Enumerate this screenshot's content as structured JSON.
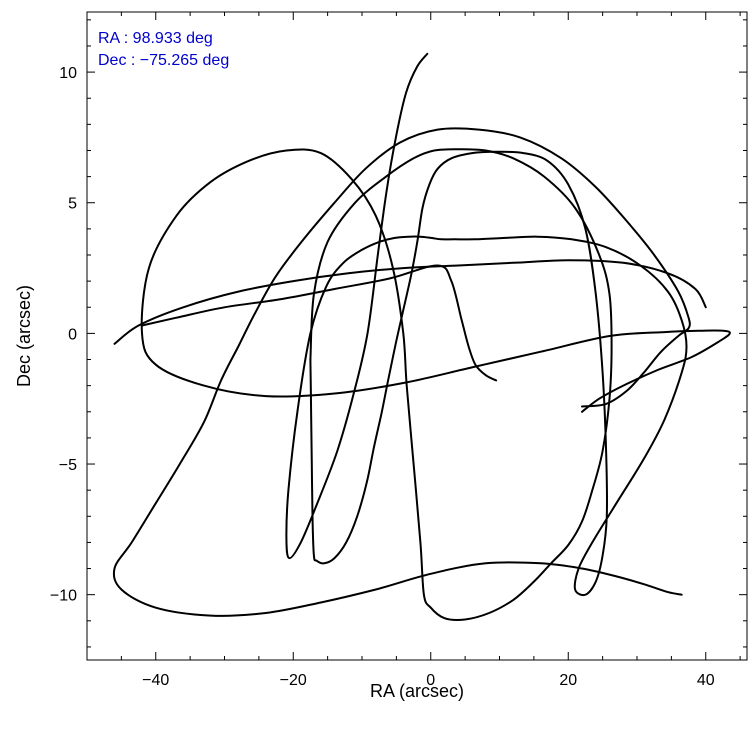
{
  "chart_data": {
    "type": "line",
    "title": "",
    "xlabel": "RA (arcsec)",
    "ylabel": "Dec (arcsec)",
    "xlim": [
      -50,
      46
    ],
    "ylim": [
      -12.5,
      12.3
    ],
    "xticks": [
      -40,
      -20,
      0,
      20,
      40
    ],
    "yticks": [
      -10,
      -5,
      0,
      5,
      10
    ],
    "xtick_labels": [
      "−40",
      "−20",
      "0",
      "20",
      "40"
    ],
    "ytick_labels": [
      "−10",
      "−5",
      "0",
      "5",
      "10"
    ],
    "x_minor_step": 5,
    "y_minor_step": 1,
    "grid": false,
    "line_color": "#000000",
    "annotation_color": "#0000cc",
    "annotations": [
      "RA : 98.933 deg",
      "Dec : −75.265 deg"
    ],
    "series": [
      {
        "x": [
          -0.5,
          -2.0,
          -3.6,
          -5.0,
          -6.4,
          -7.7,
          -9.2,
          -11.2,
          -13.6,
          -16.5,
          -18.9,
          -20.6,
          -21.0,
          -20.7,
          -19.4,
          -17.5,
          -15.2,
          -12.7,
          -10.0,
          -7.5,
          -5.3,
          -3.2,
          -1.5,
          0.2,
          1.5,
          3.5,
          6.5,
          10.5,
          15.5,
          20.5,
          25.5,
          30.5,
          34.5,
          36.5,
          37.2,
          36.5,
          34.0,
          31.0,
          27.0,
          23.5,
          21.5,
          21.0,
          22.5,
          24.0,
          25.0,
          25.6,
          25.5,
          25.0,
          24.0,
          22.5,
          20.0,
          17.0,
          13.5,
          9.5,
          6.0,
          3.0,
          1.0,
          -0.2,
          -1.2,
          -1.9,
          -2.8,
          -3.9,
          -5.1,
          -6.2,
          -7.2,
          -8.3,
          -9.3,
          -10.7,
          -12.3,
          -14.0,
          -15.5,
          -16.6,
          -17.0,
          -17.2,
          -17.3,
          -17.4,
          -17.5
        ],
        "y": [
          10.7,
          10.2,
          9.2,
          7.6,
          5.5,
          3.0,
          0.0,
          -2.3,
          -4.5,
          -6.5,
          -8.0,
          -8.6,
          -7.8,
          -6.0,
          -3.0,
          0.0,
          1.8,
          2.7,
          3.2,
          3.5,
          3.65,
          3.7,
          3.7,
          3.65,
          3.6,
          3.6,
          3.6,
          3.65,
          3.7,
          3.6,
          3.3,
          2.6,
          1.6,
          0.5,
          -0.5,
          -1.5,
          -3.3,
          -4.8,
          -6.5,
          -8.0,
          -9.0,
          -9.8,
          -10.0,
          -9.5,
          -8.5,
          -7.0,
          -4.5,
          -1.5,
          1.5,
          4.0,
          5.7,
          6.6,
          6.9,
          6.95,
          6.9,
          6.7,
          6.3,
          5.7,
          4.8,
          3.6,
          2.3,
          1.0,
          -0.4,
          -1.8,
          -3.1,
          -4.4,
          -5.7,
          -7.0,
          -8.0,
          -8.6,
          -8.8,
          -8.7,
          -8.5,
          -7.0,
          -5.0,
          -3.0,
          -1.0
        ]
      },
      {
        "x": [
          -17.5,
          -17.0,
          -15.0,
          -11.0,
          -6.5,
          -2.5,
          0.5,
          4.0,
          8.0,
          12.0,
          16.5,
          21.0,
          24.5,
          26.0,
          26.3,
          26.0,
          25.0,
          23.5,
          22.0,
          20.0,
          17.5,
          15.0,
          12.0,
          8.5,
          5.0,
          2.0,
          0.0,
          -1.0,
          -1.5,
          -2.5,
          -3.5,
          -4.0,
          -5.5,
          -8.0,
          -11.5,
          -16.0,
          -21.0,
          -26.5,
          -32.0,
          -37.0,
          -41.0,
          -42.0,
          -40.0,
          -33.0,
          -24.0,
          -14.0,
          -4.0,
          6.0,
          16.0,
          26.0,
          34.0,
          39.0,
          42.5,
          43.5,
          42.0,
          38.0,
          33.0,
          28.0,
          24.5,
          22.0
        ],
        "y": [
          -1.0,
          1.5,
          3.5,
          5.0,
          6.0,
          6.7,
          7.0,
          7.05,
          7.0,
          6.7,
          6.0,
          4.8,
          3.0,
          1.5,
          -0.5,
          -2.5,
          -4.5,
          -6.0,
          -7.2,
          -8.1,
          -8.8,
          -9.5,
          -10.2,
          -10.7,
          -10.95,
          -10.9,
          -10.5,
          -10.0,
          -8.0,
          -5.0,
          -2.0,
          0.0,
          2.5,
          4.5,
          5.9,
          6.9,
          7.0,
          6.6,
          5.8,
          4.5,
          2.5,
          0.0,
          -1.2,
          -2.0,
          -2.4,
          -2.3,
          -1.9,
          -1.3,
          -0.7,
          -0.1,
          0.05,
          0.1,
          0.1,
          0.0,
          -0.3,
          -0.9,
          -1.4,
          -2.0,
          -2.5,
          -3.0
        ]
      },
      {
        "x": [
          22.0,
          25.5,
          28.5,
          31.0,
          33.5,
          36.0,
          37.5,
          37.5,
          36.0,
          32.5,
          28.5,
          24.0,
          19.0,
          13.0,
          7.0,
          1.0,
          -4.5,
          -9.5,
          -14.0,
          -18.5,
          -22.5,
          -25.5,
          -28.0,
          -30.5,
          -33.0,
          -36.5,
          -40.0,
          -43.5,
          -46.0,
          -45.0,
          -40.0,
          -32.0,
          -24.0,
          -16.0,
          -8.0,
          0.0,
          8.0,
          16.0,
          22.0,
          27.0,
          31.0,
          34.5,
          36.5
        ],
        "y": [
          -2.8,
          -2.7,
          -2.2,
          -1.5,
          -0.7,
          -0.1,
          0.2,
          0.6,
          1.6,
          3.0,
          4.3,
          5.6,
          6.7,
          7.5,
          7.8,
          7.8,
          7.3,
          6.3,
          5.0,
          3.6,
          2.2,
          0.8,
          -0.5,
          -1.8,
          -3.4,
          -5.0,
          -6.5,
          -8.0,
          -9.0,
          -9.8,
          -10.5,
          -10.8,
          -10.7,
          -10.3,
          -9.8,
          -9.2,
          -8.8,
          -8.8,
          -9.0,
          -9.3,
          -9.6,
          -9.9,
          -10.0
        ]
      },
      {
        "x": [
          -46.0,
          -42.5,
          -36.0,
          -28.0,
          -20.0,
          -12.0,
          -4.0,
          4.0,
          12.0,
          20.0,
          28.0,
          34.5,
          38.5,
          40.0
        ],
        "y": [
          -0.4,
          0.3,
          1.0,
          1.6,
          2.0,
          2.3,
          2.5,
          2.6,
          2.7,
          2.8,
          2.7,
          2.3,
          1.7,
          1.0
        ]
      },
      {
        "x": [
          -42.0,
          -37.0,
          -30.0,
          -22.0,
          -14.0,
          -6.0,
          1.0,
          3.0,
          4.5,
          5.5,
          6.5,
          8.0,
          9.5
        ],
        "y": [
          0.3,
          0.6,
          1.0,
          1.3,
          1.7,
          2.1,
          2.6,
          2.0,
          0.5,
          -0.5,
          -1.2,
          -1.6,
          -1.8
        ]
      }
    ]
  }
}
